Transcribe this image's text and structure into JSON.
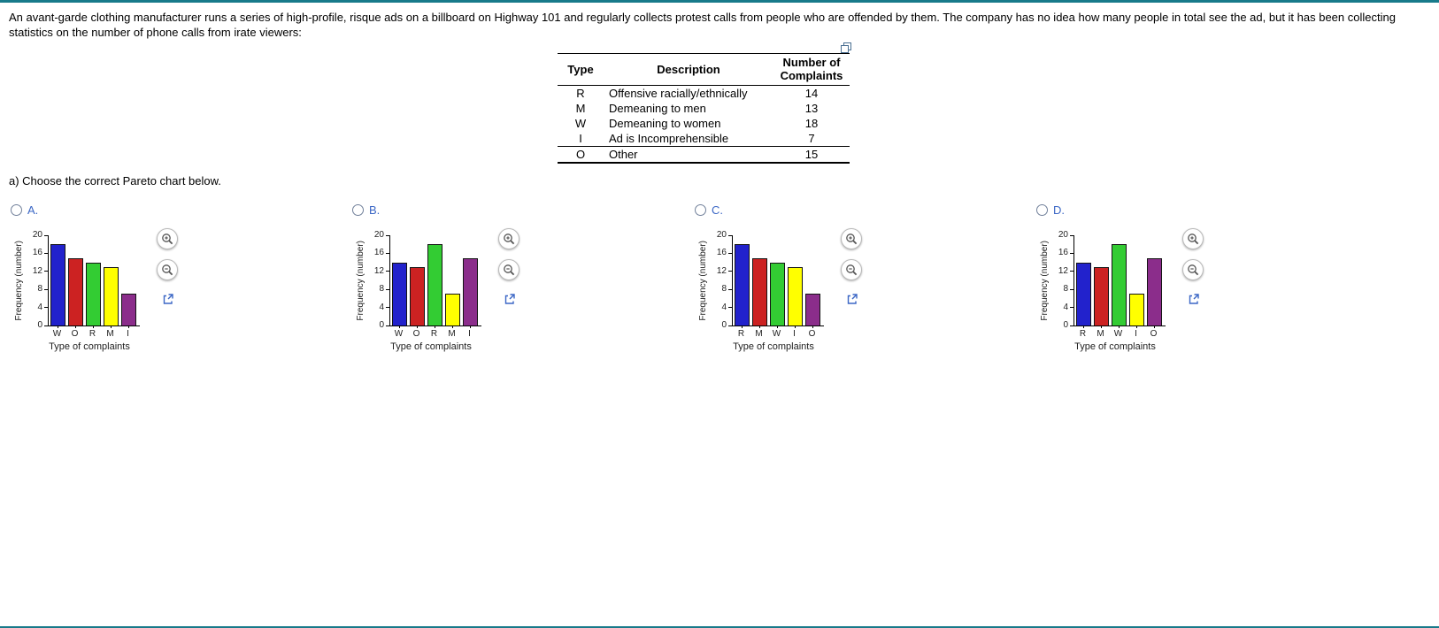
{
  "page": {
    "intro_line1": "An avant-garde clothing manufacturer runs a series of high-profile, risque ads on a billboard on Highway 101 and regularly collects protest calls from people who are offended by them. The company has no idea how many people in total see the ad, but it has been collecting",
    "intro_line2": "statistics on the number of phone calls from irate viewers:",
    "part_a_label": "a) Choose the correct Pareto chart below."
  },
  "table": {
    "col_headers": [
      "Type",
      "Description",
      "Number of Complaints"
    ],
    "rows": [
      [
        "R",
        "Offensive racially/ethnically",
        "14"
      ],
      [
        "M",
        "Demeaning to men",
        "13"
      ],
      [
        "W",
        "Demeaning to women",
        "18"
      ],
      [
        "I",
        "Ad is Incomprehensible",
        "7"
      ],
      [
        "O",
        "Other",
        "15"
      ]
    ]
  },
  "icons": {
    "copy_icon": "copy-data-table-icon",
    "zoom_in_icon": "magnifier-plus",
    "zoom_out_icon": "magnifier-minus",
    "enlarge_icon": "external-link-arrow"
  },
  "colors": {
    "top_bar": "#187a8a",
    "option_letter": "#3b67c5",
    "bar_colors": [
      "#2222cc",
      "#cc2222",
      "#33cc33",
      "#ffff00",
      "#8b2d8b"
    ]
  },
  "chart_data": [
    {
      "type": "bar",
      "label": "A.",
      "categories": [
        "W",
        "O",
        "R",
        "M",
        "I"
      ],
      "values": [
        18,
        15,
        14,
        13,
        7
      ],
      "xlabel": "Type of complaints",
      "ylabel": "Frequency (number)",
      "ylim": [
        0,
        20
      ],
      "yticks": [
        0,
        4,
        8,
        12,
        16,
        20
      ]
    },
    {
      "type": "bar",
      "label": "B.",
      "categories": [
        "W",
        "O",
        "R",
        "M",
        "I"
      ],
      "values": [
        14,
        13,
        18,
        7,
        15
      ],
      "xlabel": "Type of complaints",
      "ylabel": "Frequency (number)",
      "ylim": [
        0,
        20
      ],
      "yticks": [
        0,
        4,
        8,
        12,
        16,
        20
      ]
    },
    {
      "type": "bar",
      "label": "C.",
      "categories": [
        "R",
        "M",
        "W",
        "I",
        "O"
      ],
      "values": [
        18,
        15,
        14,
        13,
        7
      ],
      "xlabel": "Type of complaints",
      "ylabel": "Frequency (number)",
      "ylim": [
        0,
        20
      ],
      "yticks": [
        0,
        4,
        8,
        12,
        16,
        20
      ]
    },
    {
      "type": "bar",
      "label": "D.",
      "categories": [
        "R",
        "M",
        "W",
        "I",
        "O"
      ],
      "values": [
        14,
        13,
        18,
        7,
        15
      ],
      "xlabel": "Type of complaints",
      "ylabel": "Frequency (number)",
      "ylim": [
        0,
        20
      ],
      "yticks": [
        0,
        4,
        8,
        12,
        16,
        20
      ]
    }
  ]
}
